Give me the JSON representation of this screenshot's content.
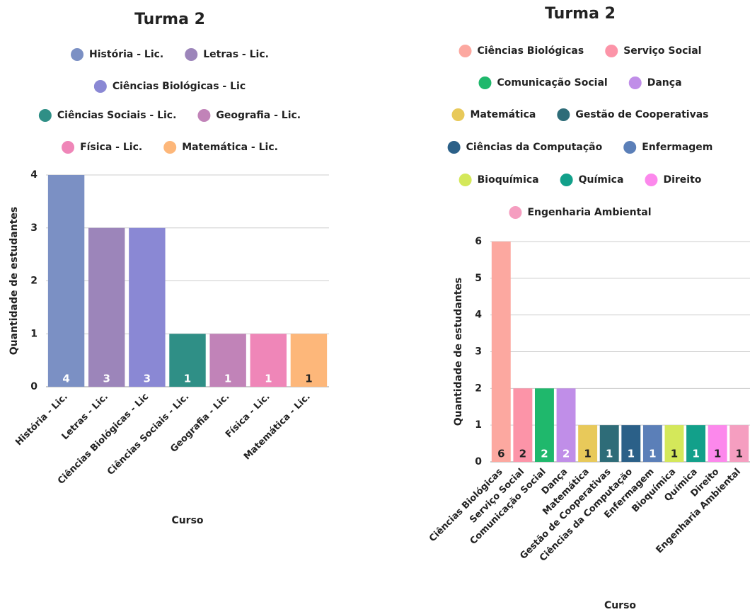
{
  "chart_data": [
    {
      "type": "bar",
      "title": "Turma 2",
      "y_label": "Quantidade de estudantes",
      "x_label": "Curso",
      "categories": [
        "História - Lic.",
        "Letras - Lic.",
        "Ciências Biológicas - Lic",
        "Ciências Sociais - Lic.",
        "Geografia - Lic.",
        "Física - Lic.",
        "Matemática - Lic."
      ],
      "values": [
        4,
        3,
        3,
        1,
        1,
        1,
        1
      ],
      "colors": [
        "#7b90c4",
        "#9c85ba",
        "#8a88d4",
        "#2f8f86",
        "#c183b8",
        "#ef86b8",
        "#fdb77a"
      ],
      "ylim": [
        0,
        4
      ],
      "yticks": [
        0,
        1,
        2,
        3,
        4
      ],
      "grid": true
    },
    {
      "type": "bar",
      "title": "Turma 2",
      "y_label": "Quantidade de estudantes",
      "x_label": "Curso",
      "categories": [
        "Ciências Biológicas",
        "Serviço Social",
        "Comunicação Social",
        "Dança",
        "Matemática",
        "Gestão de Cooperativas",
        "Ciências da Computação",
        "Enfermagem",
        "Bioquímica",
        "Química",
        "Direito",
        "Engenharia Ambiental"
      ],
      "values": [
        6,
        2,
        2,
        2,
        1,
        1,
        1,
        1,
        1,
        1,
        1,
        1
      ],
      "colors": [
        "#fca8a0",
        "#fc94a8",
        "#1fb86c",
        "#c08ee8",
        "#e8c95a",
        "#2e6c78",
        "#2b6088",
        "#5b7fb8",
        "#d4e85a",
        "#12a08a",
        "#fc88ec",
        "#f59ec0"
      ],
      "ylim": [
        0,
        6
      ],
      "yticks": [
        0,
        1,
        2,
        3,
        4,
        5,
        6
      ],
      "grid": true
    }
  ]
}
